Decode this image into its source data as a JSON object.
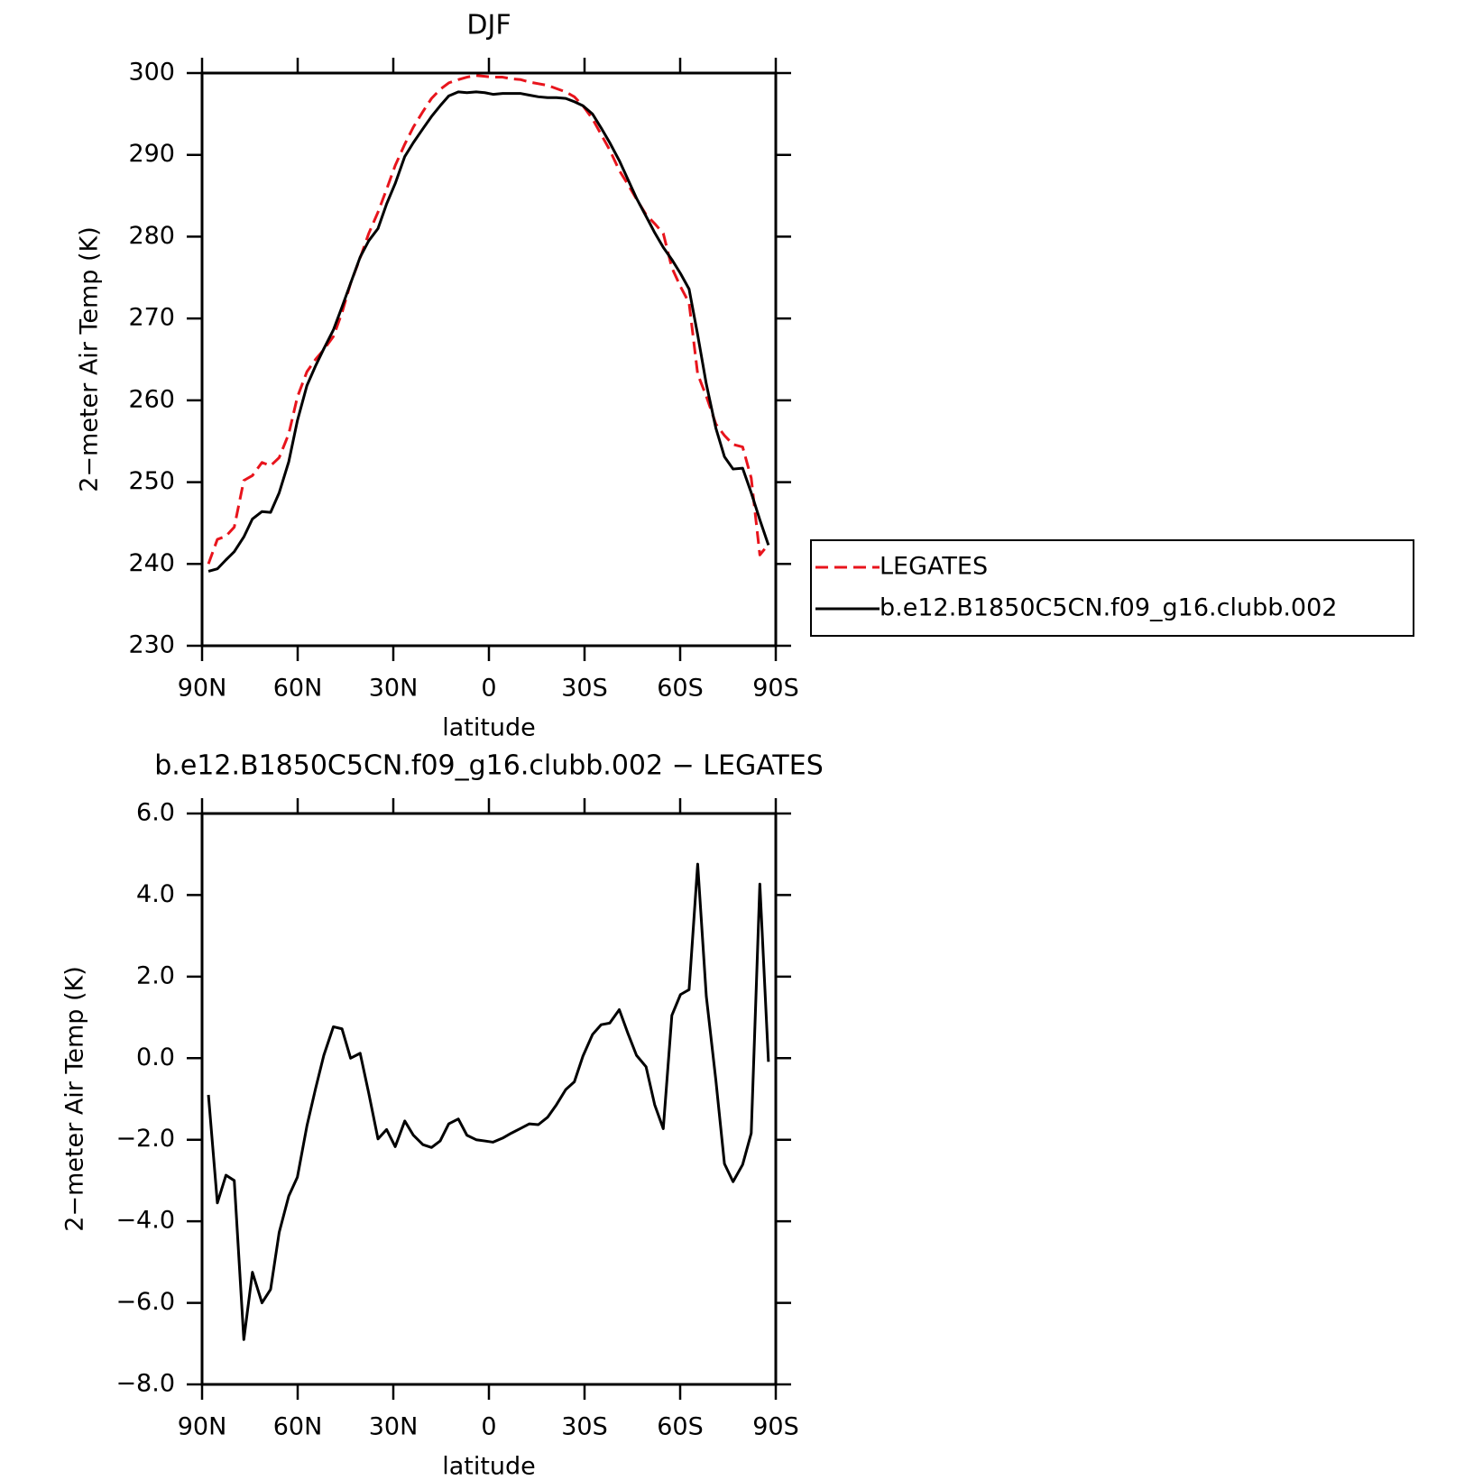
{
  "chart_data": [
    {
      "type": "line",
      "title": "DJF",
      "xlabel": "latitude",
      "ylabel": "2−meter Air Temp (K)",
      "x": [
        88,
        85.2,
        82.5,
        79.9,
        76.9,
        74.2,
        71.2,
        68.5,
        65.8,
        62.8,
        60.1,
        57.1,
        54.4,
        51.8,
        48.8,
        46.1,
        43.4,
        40.4,
        37.7,
        34.8,
        32.1,
        29.4,
        26.4,
        23.7,
        20.7,
        18,
        15.3,
        12.6,
        9.6,
        6.9,
        4,
        1.3,
        -1.3,
        -4.3,
        -7,
        -10,
        -12.7,
        -15.5,
        -18.4,
        -21.2,
        -24.1,
        -26.8,
        -29.5,
        -32.5,
        -35.2,
        -37.9,
        -40.9,
        -43.6,
        -46.3,
        -49.3,
        -52,
        -54.7,
        -57.4,
        -60.1,
        -62.8,
        -65.5,
        -68.2,
        -71.2,
        -73.9,
        -76.6,
        -79.6,
        -82.3,
        -85,
        -87.7
      ],
      "series": [
        {
          "name": "LEGATES",
          "color": "#e8141c",
          "style": "dashed",
          "values": [
            240.0,
            243.0,
            243.4,
            244.5,
            250.2,
            250.8,
            252.4,
            252.0,
            253.0,
            255.9,
            260.4,
            263.5,
            265.0,
            266.2,
            267.8,
            270.7,
            274.3,
            277.4,
            280.4,
            283.0,
            285.8,
            288.7,
            291.3,
            293.4,
            295.3,
            296.9,
            298.0,
            298.8,
            299.2,
            299.5,
            299.7,
            299.6,
            299.5,
            299.5,
            299.3,
            299.2,
            298.9,
            298.7,
            298.5,
            298.1,
            297.7,
            297.1,
            296.0,
            294.4,
            292.5,
            290.6,
            288.1,
            286.4,
            284.6,
            282.7,
            281.6,
            280.4,
            276.2,
            273.9,
            271.9,
            263.2,
            260.5,
            257.1,
            255.7,
            254.6,
            254.3,
            250.5,
            241.1,
            242.4
          ]
        },
        {
          "name": "b.e12.B1850C5CN.f09_g16.clubb.002",
          "color": "#000000",
          "style": "solid",
          "values": [
            239.1,
            239.4,
            240.5,
            241.5,
            243.3,
            245.5,
            246.4,
            246.3,
            248.7,
            252.5,
            257.5,
            261.8,
            264.2,
            266.3,
            268.6,
            271.4,
            274.3,
            277.5,
            279.5,
            281.0,
            284.0,
            286.5,
            289.8,
            291.5,
            293.2,
            294.7,
            296.0,
            297.2,
            297.7,
            297.6,
            297.7,
            297.6,
            297.4,
            297.5,
            297.5,
            297.5,
            297.3,
            297.1,
            297.0,
            297.0,
            296.9,
            296.5,
            296.0,
            295.0,
            293.3,
            291.5,
            289.3,
            287.0,
            284.7,
            282.5,
            280.5,
            278.7,
            277.2,
            275.5,
            273.6,
            268.0,
            262.0,
            256.6,
            253.1,
            251.6,
            251.7,
            248.7,
            245.4,
            242.3
          ]
        }
      ],
      "xlim": [
        90,
        -90
      ],
      "xticks": [
        {
          "value": 90,
          "label": "90N"
        },
        {
          "value": 60,
          "label": "60N"
        },
        {
          "value": 30,
          "label": "30N"
        },
        0,
        {
          "value": -30,
          "label": "30S"
        },
        {
          "value": -60,
          "label": "60S"
        },
        {
          "value": -90,
          "label": "90S"
        }
      ],
      "ylim": [
        230,
        300
      ],
      "yticks": [
        230,
        240,
        250,
        260,
        270,
        280,
        290,
        300
      ],
      "legend": "right"
    },
    {
      "type": "line",
      "title": "b.e12.B1850C5CN.f09_g16.clubb.002 − LEGATES",
      "xlabel": "latitude",
      "ylabel": "2−meter Air Temp (K)",
      "x": [
        88,
        85.2,
        82.5,
        79.9,
        76.9,
        74.2,
        71.2,
        68.5,
        65.8,
        62.8,
        60.1,
        57.1,
        54.4,
        51.8,
        48.8,
        46.1,
        43.4,
        40.4,
        37.7,
        34.8,
        32.1,
        29.4,
        26.4,
        23.7,
        20.7,
        18,
        15.3,
        12.6,
        9.6,
        6.9,
        4,
        1.3,
        -1.3,
        -4.3,
        -7,
        -10,
        -12.7,
        -15.5,
        -18.4,
        -21.2,
        -24.1,
        -26.8,
        -29.5,
        -32.5,
        -35.2,
        -37.9,
        -40.9,
        -43.6,
        -46.3,
        -49.3,
        -52,
        -54.7,
        -57.4,
        -60.1,
        -62.8,
        -65.5,
        -68.2,
        -71.2,
        -73.9,
        -76.6,
        -79.6,
        -82.3,
        -85,
        -87.7
      ],
      "values": [
        -0.9,
        -3.55,
        -2.87,
        -3.0,
        -6.9,
        -5.25,
        -6.0,
        -5.67,
        -4.27,
        -3.38,
        -2.92,
        -1.66,
        -0.75,
        0.07,
        0.77,
        0.72,
        0.0,
        0.12,
        -0.86,
        -1.98,
        -1.75,
        -2.17,
        -1.54,
        -1.89,
        -2.12,
        -2.19,
        -2.03,
        -1.61,
        -1.49,
        -1.89,
        -2.0,
        -2.03,
        -2.06,
        -1.96,
        -1.84,
        -1.72,
        -1.61,
        -1.63,
        -1.45,
        -1.14,
        -0.77,
        -0.58,
        0.05,
        0.58,
        0.82,
        0.86,
        1.19,
        0.61,
        0.07,
        -0.21,
        -1.14,
        -1.73,
        1.05,
        1.56,
        1.68,
        4.76,
        1.52,
        -0.54,
        -2.59,
        -3.03,
        -2.61,
        -1.84,
        4.27,
        -0.09
      ],
      "color": "#000000",
      "xlim": [
        90,
        -90
      ],
      "xticks": [
        {
          "value": 90,
          "label": "90N"
        },
        {
          "value": 60,
          "label": "60N"
        },
        {
          "value": 30,
          "label": "30N"
        },
        0,
        {
          "value": -30,
          "label": "30S"
        },
        {
          "value": -60,
          "label": "60S"
        },
        {
          "value": -90,
          "label": "90S"
        }
      ],
      "ylim": [
        -8,
        6
      ],
      "yticks": [
        {
          "value": -8,
          "label": "−8.0"
        },
        {
          "value": -6,
          "label": "−6.0"
        },
        {
          "value": -4,
          "label": "−4.0"
        },
        {
          "value": -2,
          "label": "−2.0"
        },
        {
          "value": 0,
          "label": "0.0"
        },
        {
          "value": 2,
          "label": "2.0"
        },
        {
          "value": 4,
          "label": "4.0"
        },
        {
          "value": 6,
          "label": "6.0"
        }
      ]
    }
  ]
}
